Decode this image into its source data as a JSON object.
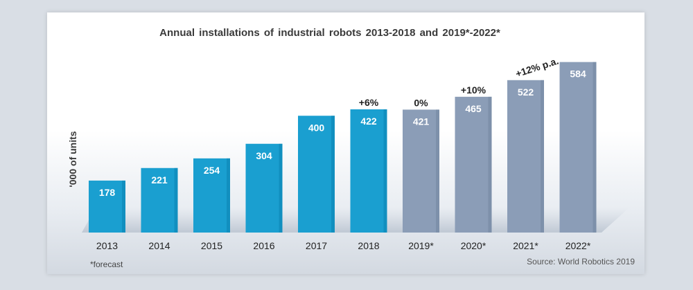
{
  "chart_data": {
    "type": "bar",
    "title": "Annual installations of industrial robots 2013-2018 and 2019*-2022*",
    "ylabel": "'000 of units",
    "xlabel": "",
    "categories": [
      "2013",
      "2014",
      "2015",
      "2016",
      "2017",
      "2018",
      "2019*",
      "2020*",
      "2021*",
      "2022*"
    ],
    "values": [
      178,
      221,
      254,
      304,
      400,
      422,
      421,
      465,
      522,
      584
    ],
    "forecast": [
      false,
      false,
      false,
      false,
      false,
      false,
      true,
      true,
      true,
      true
    ],
    "ylim": [
      0,
      640
    ],
    "grid": false,
    "legend": "none",
    "colors": {
      "actual": "#1a9fd0",
      "actual_dark": "#0b86b4",
      "forecast": "#8b9db7",
      "forecast_dark": "#7587a2"
    },
    "annotations": [
      {
        "category": "2018",
        "text": "+6%"
      },
      {
        "category": "2019*",
        "text": "0%"
      },
      {
        "category": "2020*",
        "text": "+10%"
      },
      {
        "category": "2021*",
        "text": "+12% p.a."
      }
    ]
  },
  "footnote": "*forecast",
  "source": "Source: World Robotics 2019"
}
